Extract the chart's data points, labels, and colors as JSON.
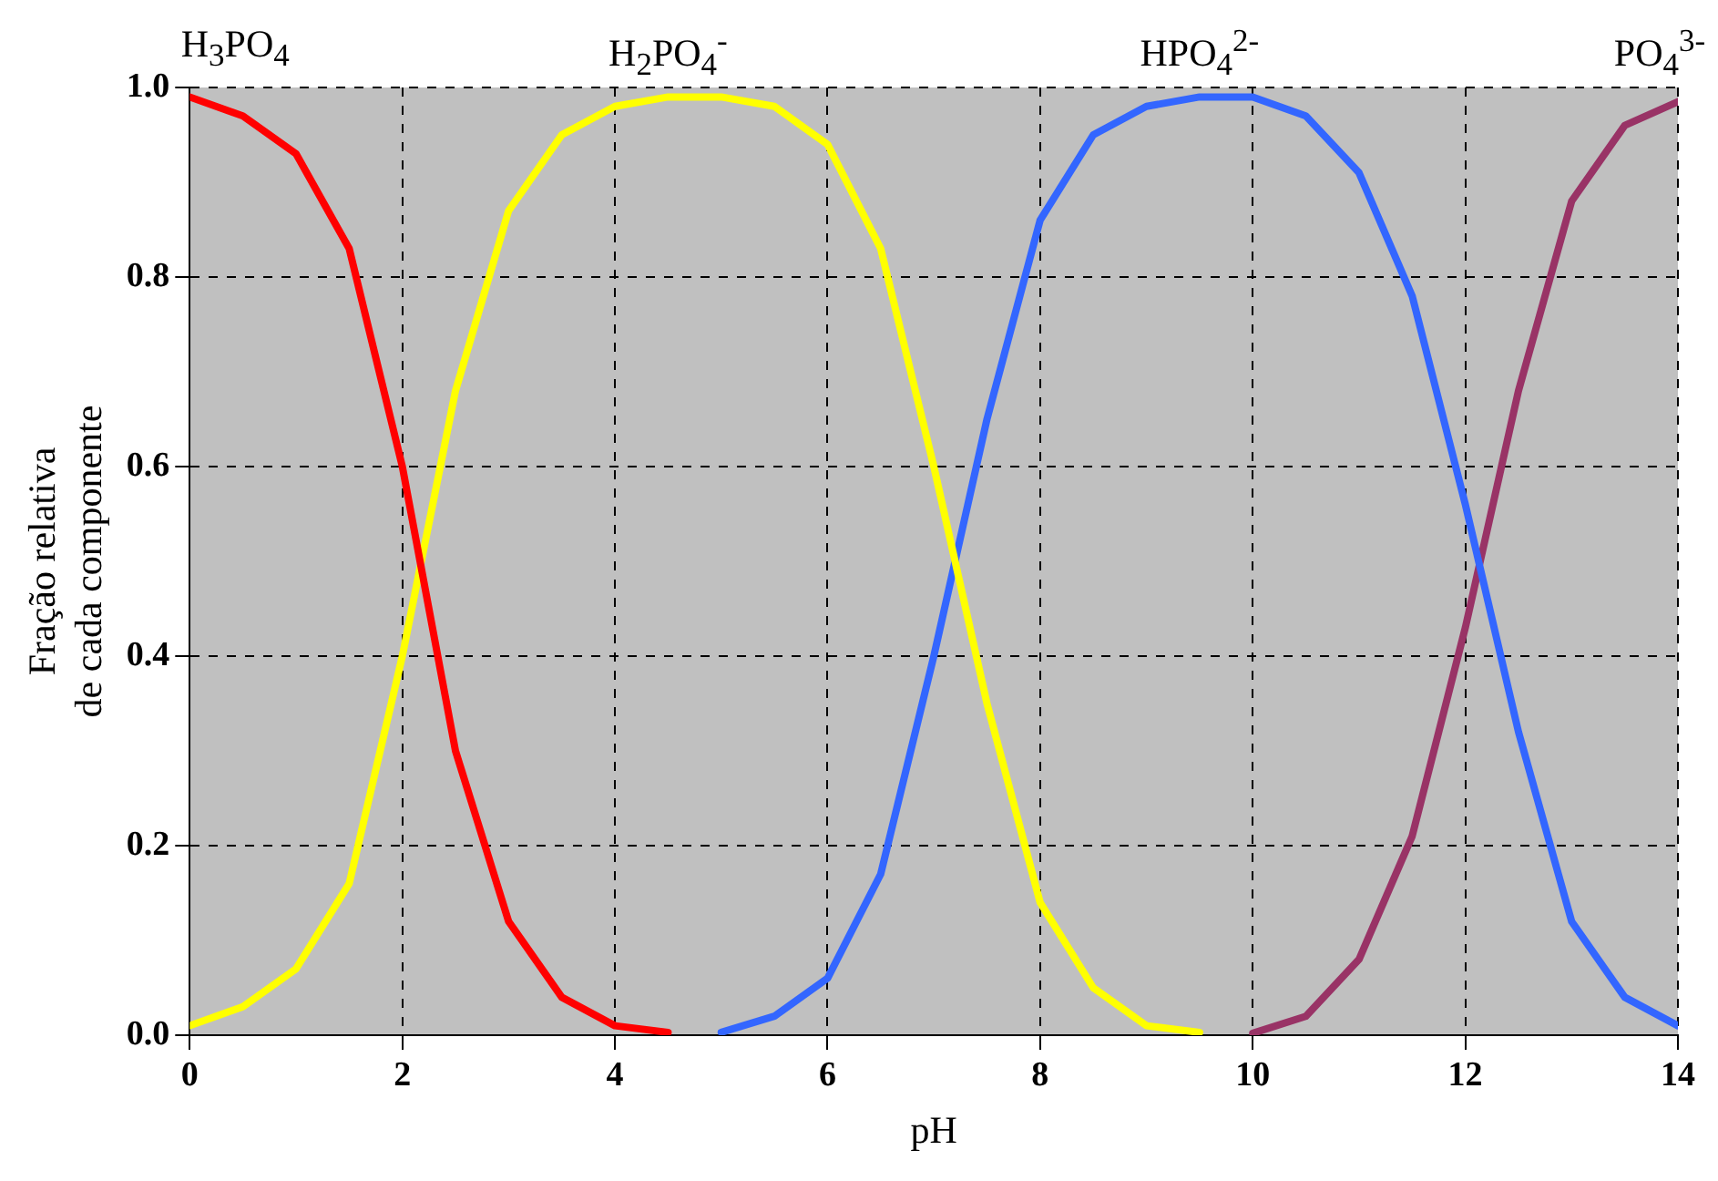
{
  "chart_data": {
    "type": "line",
    "xlabel": "pH",
    "ylabel": "Fração relativa de cada componente",
    "x": [
      0,
      0.5,
      1,
      1.5,
      2,
      2.5,
      3,
      3.5,
      4,
      4.5,
      5,
      5.5,
      6,
      6.5,
      7,
      7.5,
      8,
      8.5,
      9,
      9.5,
      10,
      10.5,
      11,
      11.5,
      12,
      12.5,
      13,
      13.5,
      14
    ],
    "xlim": [
      0,
      14
    ],
    "xticks": [
      0,
      2,
      4,
      6,
      8,
      10,
      12,
      14
    ],
    "ylim": [
      0,
      1
    ],
    "yticks": [
      {
        "value": 0,
        "label": "0.0"
      },
      {
        "value": 0.2,
        "label": "0.2"
      },
      {
        "value": 0.4,
        "label": "0.4"
      },
      {
        "value": 0.6,
        "label": "0.6"
      },
      {
        "value": 0.8,
        "label": "0.8"
      },
      {
        "value": 1,
        "label": "1.0"
      }
    ],
    "grid": true,
    "marker": "none",
    "line_style": "solid",
    "series": [
      {
        "name": "H$_{3}$PO$_{4}$",
        "color": "#ff0000",
        "values": [
          0.99,
          0.97,
          0.93,
          0.83,
          0.6,
          0.3,
          0.12,
          0.04,
          0.01,
          0.003,
          null,
          null,
          null,
          null,
          null,
          null,
          null,
          null,
          null,
          null,
          null,
          null,
          null,
          null,
          null,
          null,
          null,
          null,
          null
        ]
      },
      {
        "name": "H$_{2}$PO$_{4}$$^{-}$",
        "color": "#ffff00",
        "values": [
          0.01,
          0.03,
          0.07,
          0.16,
          0.4,
          0.68,
          0.87,
          0.95,
          0.98,
          0.99,
          0.99,
          0.98,
          0.94,
          0.83,
          0.6,
          0.35,
          0.14,
          0.05,
          0.01,
          0.003,
          null,
          null,
          null,
          null,
          null,
          null,
          null,
          null,
          null
        ]
      },
      {
        "name": "HPO$_{4}$$^{2-}$",
        "color": "#3366ff",
        "values": [
          null,
          null,
          null,
          null,
          null,
          null,
          null,
          null,
          null,
          null,
          0.003,
          0.02,
          0.06,
          0.17,
          0.4,
          0.65,
          0.86,
          0.95,
          0.98,
          0.99,
          0.99,
          0.97,
          0.91,
          0.78,
          0.56,
          0.32,
          0.12,
          0.04,
          0.01
        ]
      },
      {
        "name": "PO$_{4}$$^{3-}$",
        "color": "#993366",
        "values": [
          null,
          null,
          null,
          null,
          null,
          null,
          null,
          null,
          null,
          null,
          null,
          null,
          null,
          null,
          null,
          null,
          null,
          null,
          null,
          null,
          0.002,
          0.02,
          0.08,
          0.21,
          0.43,
          0.68,
          0.88,
          0.96,
          0.985
        ]
      }
    ]
  }
}
